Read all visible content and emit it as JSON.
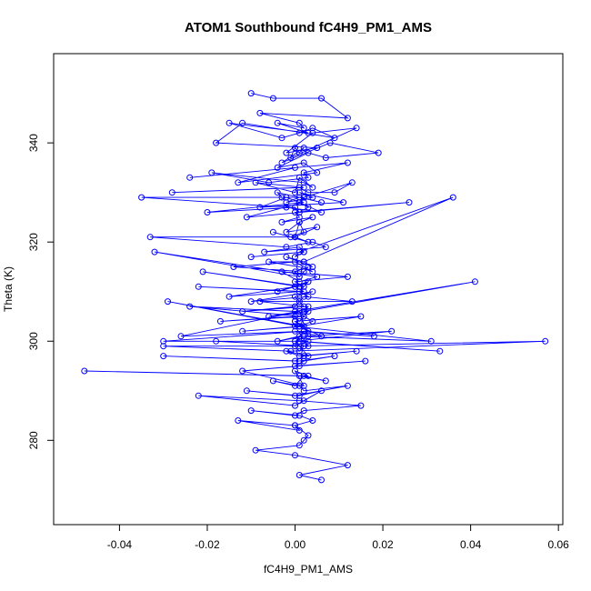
{
  "chart_data": {
    "type": "line",
    "title": "ATOM1 Southbound fC4H9_PM1_AMS",
    "xlabel": "fC4H9_PM1_AMS",
    "ylabel": "Theta (K)",
    "xlim": [
      -0.055,
      0.061
    ],
    "ylim": [
      263,
      358
    ],
    "xticks": [
      -0.04,
      -0.02,
      0.0,
      0.02,
      0.04,
      0.06
    ],
    "xtick_labels": [
      "-0.04",
      "-0.02",
      "0.00",
      "0.02",
      "0.04",
      "0.06"
    ],
    "yticks": [
      280,
      300,
      320,
      340
    ],
    "ytick_labels": [
      "280",
      "300",
      "320",
      "340"
    ],
    "grid": false,
    "legend": "none",
    "marker": "open-circle",
    "color": "#0000ff",
    "series": [
      {
        "x": [
          -0.01,
          -0.005,
          0.006,
          0.012,
          -0.008,
          0.001,
          0.002,
          -0.004,
          0.003,
          -0.015,
          -0.003,
          0.001,
          0.004,
          0.009,
          -0.012,
          -0.018,
          0.005,
          -0.002,
          0.004,
          0.014,
          -0.001,
          0.0,
          0.001,
          0.002,
          -0.003,
          0.008,
          0.019,
          0.007,
          0.003,
          -0.004,
          0.002,
          0.005,
          -0.013,
          0.0,
          -0.024,
          0.012,
          0.002,
          0.003,
          -0.006,
          -0.019,
          0.002,
          0.004,
          0.001,
          0.0,
          -0.009,
          0.002,
          -0.028,
          0.001,
          0.003,
          0.009,
          0.013,
          0.002,
          -0.003,
          -0.004,
          0.006,
          0.001,
          -0.002,
          0.004,
          0.001,
          0.011,
          -0.008,
          -0.002,
          0.001,
          0.002,
          -0.035,
          -0.002,
          0.006,
          0.001,
          0.003,
          0.001,
          0.0,
          -0.02,
          0.002,
          -0.011,
          0.026,
          0.0,
          0.001,
          -0.003,
          0.004,
          0.001,
          -0.002,
          0.005,
          0.0,
          0.001,
          0.002,
          -0.001,
          -0.005,
          0.003,
          0.0,
          -0.033,
          -0.002,
          0.004,
          0.007,
          -0.007,
          0.001,
          0.002,
          -0.01,
          0.002,
          0.0,
          0.001,
          0.036,
          0.002,
          0.004,
          -0.002,
          0.002,
          -0.006,
          0.001,
          0.004,
          0.0,
          -0.014,
          0.002,
          0.001,
          0.003,
          0.0,
          0.001,
          -0.032,
          0.005,
          0.001,
          -0.003,
          0.012,
          0.0,
          0.002,
          -0.021,
          0.001,
          0.003,
          0.0,
          -0.004,
          0.003,
          0.002,
          0.001,
          -0.015,
          0.0,
          0.002,
          -0.022,
          0.001,
          0.003,
          -0.01,
          0.004,
          0.0,
          0.001,
          0.002,
          0.013,
          -0.008,
          0.002,
          0.001,
          0.0,
          -0.012,
          0.003,
          0.002,
          0.041,
          0.0,
          -0.024,
          0.002,
          0.001,
          -0.006,
          0.003,
          0.001,
          0.0,
          -0.017,
          0.002,
          0.004,
          0.001,
          0.015,
          0.0,
          0.002,
          -0.029,
          0.001,
          0.003,
          0.0,
          0.002,
          -0.012,
          0.001,
          0.006,
          0.0,
          0.018,
          0.002,
          -0.026,
          0.001,
          0.003,
          0.0,
          0.022,
          0.002,
          -0.004,
          0.001,
          0.0,
          0.003,
          -0.03,
          0.002,
          0.001,
          0.031,
          0.0,
          0.003,
          -0.018,
          0.002,
          0.001,
          0.0,
          0.057,
          -0.001,
          -0.03,
          0.002,
          0.001,
          0.033,
          0.0,
          0.003,
          -0.002,
          0.001,
          0.014,
          0.002,
          0.0,
          -0.03,
          0.001,
          0.009,
          0.002,
          0.0,
          0.016,
          0.001,
          -0.012,
          0.002,
          0.0,
          0.003,
          -0.048,
          0.001,
          0.007,
          0.002,
          0.0,
          -0.005,
          0.001,
          0.002,
          0.012,
          0.0,
          -0.011,
          0.001,
          0.006,
          0.002,
          0.0,
          -0.022,
          0.001,
          0.015,
          0.002,
          0.0,
          -0.01,
          0.001,
          0.004,
          0.0,
          -0.013,
          0.001,
          0.0,
          0.003,
          0.002,
          0.001,
          -0.009,
          0.0,
          0.012,
          0.001,
          0.006
        ],
        "y": [
          350,
          349,
          349,
          345,
          346,
          344,
          343,
          344,
          342,
          344,
          341,
          342,
          343,
          341,
          344,
          340,
          339,
          338,
          342,
          343,
          337,
          339,
          338,
          339,
          336,
          340,
          338,
          337,
          338,
          335,
          336,
          334,
          332,
          335,
          333,
          336,
          334,
          333,
          332,
          334,
          332,
          331,
          333,
          330,
          332,
          331,
          330,
          331,
          330,
          330,
          332,
          329,
          329,
          330,
          328,
          329,
          328,
          329,
          330,
          328,
          327,
          329,
          328,
          329,
          329,
          327,
          326,
          328,
          327,
          326,
          327,
          326,
          328,
          325,
          328,
          326,
          325,
          324,
          325,
          324,
          322,
          323,
          321,
          324,
          322,
          321,
          322,
          320,
          321,
          321,
          319,
          320,
          319,
          318,
          319,
          318,
          317,
          318,
          317,
          318,
          329,
          316,
          315,
          317,
          316,
          316,
          315,
          314,
          316,
          315,
          314,
          313,
          315,
          314,
          313,
          318,
          313,
          312,
          314,
          313,
          312,
          311,
          314,
          311,
          312,
          311,
          310,
          312,
          311,
          310,
          309,
          311,
          310,
          311,
          310,
          309,
          308,
          310,
          309,
          308,
          309,
          308,
          308,
          307,
          308,
          307,
          306,
          307,
          306,
          312,
          306,
          307,
          305,
          306,
          305,
          306,
          304,
          305,
          304,
          305,
          304,
          303,
          305,
          304,
          303,
          308,
          303,
          302,
          304,
          303,
          302,
          303,
          301,
          302,
          301,
          302,
          301,
          306,
          301,
          300,
          302,
          301,
          300,
          301,
          299,
          300,
          300,
          302,
          301,
          300,
          303,
          299,
          300,
          299,
          298,
          299,
          300,
          298,
          299,
          299,
          300,
          298,
          300,
          297,
          298,
          297,
          298,
          297,
          296,
          297,
          296,
          297,
          296,
          295,
          296,
          295,
          294,
          291,
          294,
          293,
          294,
          293,
          292,
          293,
          291,
          292,
          291,
          290,
          291,
          289,
          290,
          289,
          290,
          288,
          287,
          289,
          288,
          287,
          286,
          285,
          286,
          285,
          284,
          283,
          284,
          282,
          283,
          281,
          280,
          279,
          278,
          277,
          275,
          273,
          272
        ]
      }
    ]
  }
}
